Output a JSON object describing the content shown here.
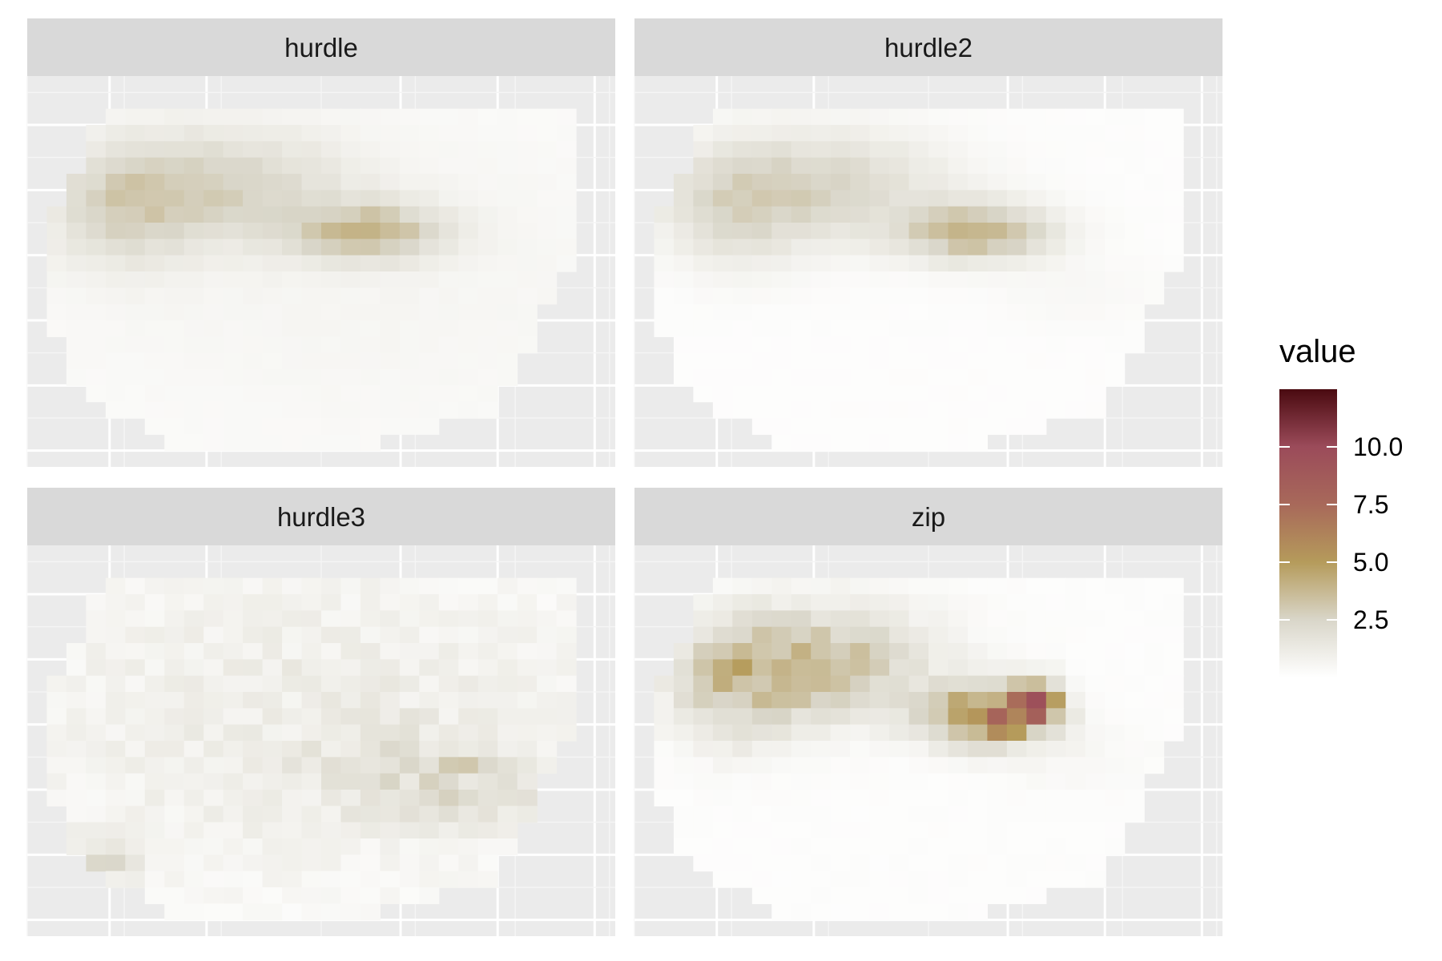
{
  "chart_data": {
    "type": "heatmap",
    "facets": [
      "hurdle",
      "hurdle2",
      "hurdle3",
      "zip"
    ],
    "legend": {
      "title": "value",
      "breaks": [
        2.5,
        5.0,
        7.5,
        10.0
      ],
      "break_labels": [
        "2.5",
        "5.0",
        "7.5",
        "10.0"
      ],
      "limits": [
        0,
        12.5
      ],
      "position": "right",
      "colors": [
        "#ffffff",
        "#d9d6c9",
        "#b59b5b",
        "#a8695a",
        "#9b4b5a",
        "#4a0a10"
      ]
    },
    "x_axis": "none",
    "y_axis": "none",
    "grid": true,
    "blobs": {
      "hurdle": [
        {
          "x": 0.55,
          "y": 0.5,
          "sx": 0.45,
          "sy": 0.35,
          "v": 0.45
        },
        {
          "x": 0.3,
          "y": 0.28,
          "sx": 0.16,
          "sy": 0.1,
          "v": 2.3
        },
        {
          "x": 0.58,
          "y": 0.4,
          "sx": 0.09,
          "sy": 0.05,
          "v": 3.2
        },
        {
          "x": 0.16,
          "y": 0.36,
          "sx": 0.08,
          "sy": 0.1,
          "v": 1.4
        }
      ],
      "hurdle2": [
        {
          "x": 0.3,
          "y": 0.28,
          "sx": 0.16,
          "sy": 0.1,
          "v": 2.3
        },
        {
          "x": 0.58,
          "y": 0.4,
          "sx": 0.09,
          "sy": 0.05,
          "v": 3.8
        },
        {
          "x": 0.17,
          "y": 0.36,
          "sx": 0.08,
          "sy": 0.1,
          "v": 1.4
        },
        {
          "x": 0.75,
          "y": 0.55,
          "sx": 0.1,
          "sy": 0.06,
          "v": 0.3
        }
      ],
      "hurdle3": [
        {
          "x": 0.5,
          "y": 0.45,
          "sx": 0.4,
          "sy": 0.3,
          "v": 1.0
        },
        {
          "x": 0.72,
          "y": 0.6,
          "sx": 0.12,
          "sy": 0.07,
          "v": 1.6
        },
        {
          "x": 0.12,
          "y": 0.8,
          "sx": 0.05,
          "sy": 0.05,
          "v": 1.5
        }
      ],
      "zip": [
        {
          "x": 0.3,
          "y": 0.3,
          "sx": 0.14,
          "sy": 0.1,
          "v": 3.4
        },
        {
          "x": 0.6,
          "y": 0.44,
          "sx": 0.07,
          "sy": 0.05,
          "v": 6.2
        },
        {
          "x": 0.68,
          "y": 0.4,
          "sx": 0.03,
          "sy": 0.04,
          "v": 6.0
        },
        {
          "x": 0.17,
          "y": 0.38,
          "sx": 0.07,
          "sy": 0.1,
          "v": 1.8
        },
        {
          "x": 0.75,
          "y": 0.55,
          "sx": 0.1,
          "sy": 0.06,
          "v": 0.3
        }
      ]
    }
  }
}
